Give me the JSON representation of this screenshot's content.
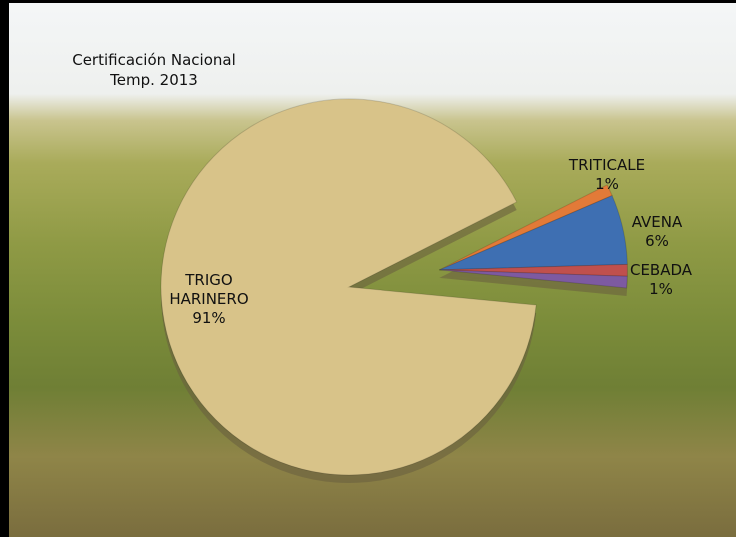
{
  "chart_data": {
    "type": "pie",
    "title": "Certificación Nacional",
    "subtitle": "Temp. 2013",
    "categories": [
      "TRIGO HARINERO",
      "TRITICALE",
      "AVENA",
      "CEBADA",
      null
    ],
    "values": [
      91,
      1,
      6,
      1,
      1
    ],
    "value_labels": [
      "91%",
      "1%",
      "6%",
      "1%",
      null
    ],
    "colors": [
      "#d8c389",
      "#e27a38",
      "#3e6fb2",
      "#c0504d",
      "#7d5aa1"
    ]
  }
}
